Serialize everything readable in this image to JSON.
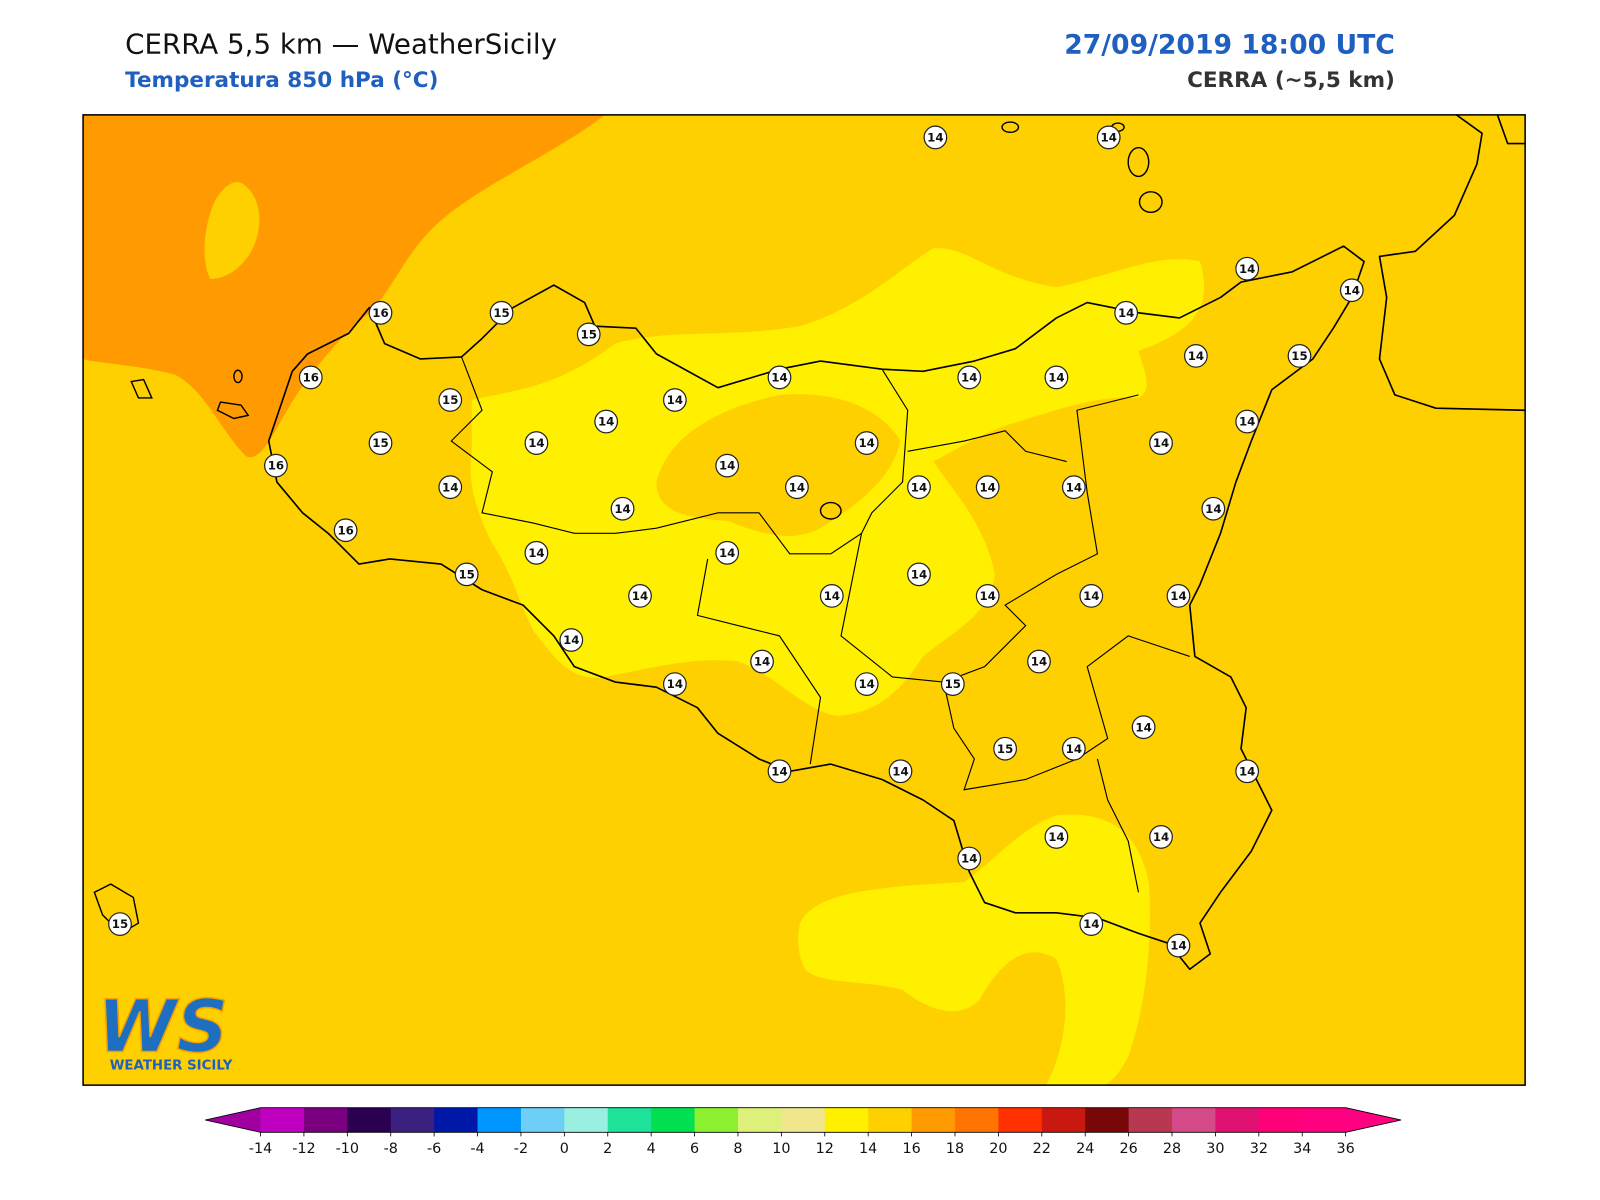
{
  "header": {
    "title": "CERRA 5,5 km — WeatherSicily",
    "subtitle": "Temperatura 850 hPa (°C)",
    "valid_time": "27/09/2019 18:00 UTC",
    "model": "CERRA (~5,5 km)"
  },
  "stations": [
    14,
    14,
    14,
    14,
    16,
    15,
    15,
    14,
    16,
    14,
    14,
    14,
    14,
    15,
    15,
    14,
    14,
    14,
    15,
    14,
    14,
    14,
    16,
    14,
    14,
    14,
    14,
    14,
    14,
    14,
    14,
    16,
    14,
    14,
    15,
    14,
    14,
    14,
    14,
    14,
    14,
    14,
    14,
    14,
    14,
    14,
    15,
    14,
    15,
    14,
    14,
    14,
    14,
    14,
    14,
    14,
    14,
    14,
    15
  ],
  "colorbar": {
    "ticks": [
      -14,
      -12,
      -10,
      -8,
      -6,
      -4,
      -2,
      0,
      2,
      4,
      6,
      8,
      10,
      12,
      14,
      16,
      18,
      20,
      22,
      24,
      26,
      28,
      30,
      32,
      34,
      36
    ],
    "colors": [
      "#c000c0",
      "#7b0080",
      "#2b0050",
      "#3c2080",
      "#0018a8",
      "#0096ff",
      "#6ecff6",
      "#99f0e0",
      "#1ee29a",
      "#00e050",
      "#8cf030",
      "#dcf07a",
      "#f0e68c",
      "#fff000",
      "#ffd000",
      "#ff9a00",
      "#ff7400",
      "#ff3000",
      "#c81810",
      "#780808",
      "#b83850",
      "#d44a88",
      "#e01070",
      "#ff0078",
      "#ff0080"
    ],
    "under_color": "#a000a0",
    "over_color": "#ff0080"
  },
  "logo": {
    "mark": "WS",
    "caption": "WEATHER SICILY"
  }
}
